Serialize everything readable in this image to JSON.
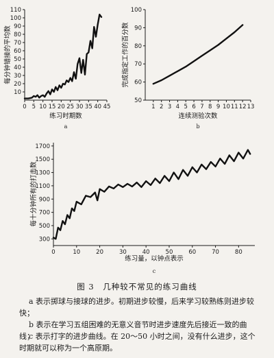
{
  "figure_title": "图 3　几种较不常见的练习曲线",
  "caption": {
    "a": "a 表示掷球与接球的进步。初期进步较慢，后来学习较熟练则进步较快；",
    "b": "b 表示在学习五组困难的无意义音节时进步速度先后接近一致的曲线；",
    "c": "c 表示打字的进步曲线。在 20～50 小时之间，没有什么进步，这个时期就可以称为一个高原期。"
  },
  "chart_data": [
    {
      "panel": "a",
      "type": "line",
      "xlabel": "练习时期数",
      "ylabel": "每分钟错接的平均数",
      "xlim": [
        0,
        45
      ],
      "ylim": [
        0,
        110
      ],
      "xticks": [
        0,
        5,
        10,
        15,
        20,
        25,
        30,
        35,
        40,
        45
      ],
      "yticks": [
        10,
        20,
        30,
        40,
        50,
        60,
        70,
        80,
        90,
        100,
        110
      ],
      "x": [
        0,
        2,
        4,
        5,
        6,
        7,
        8,
        9,
        10,
        11,
        12,
        13,
        14,
        15,
        16,
        17,
        18,
        19,
        20,
        21,
        22,
        23,
        24,
        25,
        26,
        27,
        28,
        29,
        30,
        31,
        32,
        33,
        34,
        35,
        36,
        37,
        38,
        39,
        40,
        41,
        42
      ],
      "y": [
        2,
        2,
        3,
        5,
        4,
        6,
        3,
        5,
        6,
        4,
        8,
        11,
        7,
        13,
        10,
        16,
        12,
        18,
        15,
        20,
        19,
        24,
        22,
        27,
        23,
        34,
        26,
        44,
        51,
        33,
        49,
        31,
        56,
        58,
        72,
        63,
        89,
        77,
        92,
        104,
        101
      ]
    },
    {
      "panel": "b",
      "type": "line",
      "xlabel": "连续测验次数",
      "ylabel": "完成指定工作的百分数",
      "xlim": [
        0,
        13
      ],
      "ylim": [
        50,
        100
      ],
      "xticks": [
        1,
        2,
        3,
        4,
        5,
        6,
        7,
        8,
        9,
        10,
        11,
        12,
        13
      ],
      "yticks": [
        50,
        60,
        70,
        80,
        90,
        100
      ],
      "x": [
        1,
        2,
        3,
        4,
        5,
        6,
        7,
        8,
        9,
        10,
        11,
        12
      ],
      "y": [
        59,
        61,
        63.5,
        66,
        68.5,
        71.5,
        74.5,
        77.5,
        80.5,
        84,
        87.5,
        91.5
      ]
    },
    {
      "panel": "c",
      "type": "line",
      "xlabel": "练习量，以钟点表示",
      "ylabel": "每十分钟所有的打击数",
      "xlim": [
        0,
        87
      ],
      "ylim": [
        200,
        1750
      ],
      "xticks": [
        0,
        10,
        20,
        30,
        40,
        50,
        60,
        70,
        80
      ],
      "yticks": [
        300,
        500,
        700,
        900,
        1100,
        1300,
        1500,
        1700
      ],
      "x": [
        0,
        1,
        2,
        3,
        4,
        5,
        6,
        7,
        8,
        9,
        10,
        12,
        14,
        16,
        18,
        19,
        20,
        22,
        24,
        26,
        28,
        30,
        32,
        34,
        36,
        38,
        40,
        42,
        44,
        46,
        48,
        50,
        52,
        54,
        56,
        58,
        60,
        62,
        64,
        66,
        68,
        70,
        72,
        74,
        76,
        78,
        80,
        82,
        84,
        85
      ],
      "y": [
        320,
        300,
        470,
        430,
        570,
        520,
        660,
        610,
        760,
        720,
        860,
        820,
        950,
        930,
        1000,
        880,
        1050,
        1010,
        1090,
        1060,
        1120,
        1080,
        1130,
        1090,
        1150,
        1080,
        1170,
        1110,
        1210,
        1140,
        1250,
        1170,
        1300,
        1200,
        1340,
        1250,
        1380,
        1300,
        1420,
        1350,
        1460,
        1390,
        1510,
        1430,
        1560,
        1470,
        1600,
        1510,
        1640,
        1580
      ]
    }
  ],
  "panel_labels": [
    "a",
    "b",
    "c"
  ]
}
